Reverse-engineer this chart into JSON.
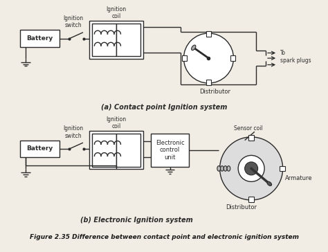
{
  "bg_color": "#f2ede4",
  "line_color": "#2a2a2a",
  "label_a": "(a) Contact point Ignition system",
  "label_b": "(b) Electronic Ignition system",
  "fig_caption": "Figure 2.35 Difference between contact point and electronic ignition system",
  "text_battery": "Battery",
  "text_ign_switch_a": "Ignition\nswitch",
  "text_ign_coil_a": "Ignition\ncoil",
  "text_distributor_a": "Distributor",
  "text_spark": "To\nspark plugs",
  "text_ign_switch_b": "Ignition\nswitch",
  "text_ign_coil_b": "Ignition\ncoil",
  "text_ecu": "Electronic\ncontrol\nunit",
  "text_sensor_coil": "Sensor coil",
  "text_distributor_b": "Distributor",
  "text_armature": "Armature"
}
